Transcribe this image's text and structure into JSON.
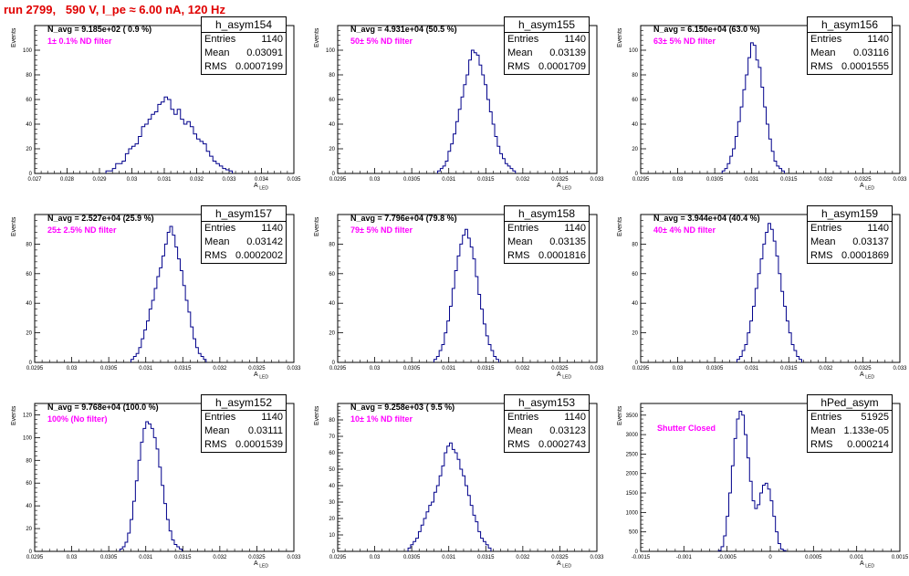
{
  "header": {
    "title": "run 2799,   590 V, I_pe ≈ 6.00 nA, 120 Hz"
  },
  "colors": {
    "title": "#e00000",
    "hist_line": "#00008b",
    "annotation": "#ff00ff",
    "axis": "#000000"
  },
  "chart_data": [
    {
      "type": "histogram",
      "name": "h_asym154",
      "navg": "N_avg = 9.185e+02 ( 0.9 %)",
      "filter": "1± 0.1% ND filter",
      "stats": {
        "entries": "1140",
        "mean": "0.03091",
        "rms": "0.0007199"
      },
      "ylabel": "Events",
      "xlabel": "A",
      "xlabel_sub": "LED",
      "xlim": [
        0.027,
        0.035
      ],
      "ylim": [
        0,
        120
      ],
      "x_ticks": [
        "0.027",
        "0.028",
        "0.029",
        "0.03",
        "0.031",
        "0.032",
        "0.033",
        "0.034",
        "0.035"
      ],
      "y_ticks": [
        0,
        20,
        40,
        60,
        80,
        100
      ],
      "bins": {
        "start": 0.0292,
        "width": 0.0001,
        "counts": [
          2,
          2,
          4,
          8,
          8,
          10,
          16,
          20,
          22,
          24,
          30,
          38,
          40,
          44,
          48,
          50,
          56,
          58,
          62,
          60,
          52,
          48,
          52,
          44,
          40,
          42,
          38,
          32,
          28,
          26,
          24,
          18,
          14,
          10,
          8,
          6,
          4,
          3,
          2
        ]
      }
    },
    {
      "type": "histogram",
      "name": "h_asym155",
      "navg": "N_avg = 4.931e+04 (50.5 %)",
      "filter": "50± 5% ND filter",
      "stats": {
        "entries": "1140",
        "mean": "0.03139",
        "rms": "0.0001709"
      },
      "ylabel": "Events",
      "xlabel": "A",
      "xlabel_sub": "LED",
      "xlim": [
        0.0295,
        0.033
      ],
      "ylim": [
        0,
        120
      ],
      "x_ticks": [
        "0.0295",
        "0.03",
        "0.0305",
        "0.031",
        "0.0315",
        "0.032",
        "0.0325",
        "0.033"
      ],
      "y_ticks": [
        0,
        20,
        40,
        60,
        80,
        100
      ],
      "bins": {
        "start": 0.03085,
        "width": 3.5e-05,
        "counts": [
          2,
          4,
          6,
          10,
          18,
          24,
          32,
          42,
          52,
          62,
          72,
          80,
          92,
          100,
          98,
          96,
          88,
          80,
          72,
          60,
          50,
          40,
          30,
          22,
          16,
          12,
          8,
          6,
          4,
          2
        ]
      }
    },
    {
      "type": "histogram",
      "name": "h_asym156",
      "navg": "N_avg = 6.150e+04 (63.0 %)",
      "filter": "63± 5% ND filter",
      "stats": {
        "entries": "1140",
        "mean": "0.03116",
        "rms": "0.0001555"
      },
      "ylabel": "Events",
      "xlabel": "A",
      "xlabel_sub": "LED",
      "xlim": [
        0.0295,
        0.033
      ],
      "ylim": [
        0,
        120
      ],
      "x_ticks": [
        "0.0295",
        "0.03",
        "0.0305",
        "0.031",
        "0.0315",
        "0.032",
        "0.0325",
        "0.033"
      ],
      "y_ticks": [
        0,
        20,
        40,
        60,
        80,
        100
      ],
      "bins": {
        "start": 0.0306,
        "width": 3.5e-05,
        "counts": [
          2,
          4,
          8,
          14,
          20,
          30,
          42,
          54,
          68,
          80,
          94,
          106,
          104,
          92,
          86,
          70,
          54,
          40,
          28,
          18,
          10,
          6,
          4,
          2
        ]
      }
    },
    {
      "type": "histogram",
      "name": "h_asym157",
      "navg": "N_avg = 2.527e+04 (25.9 %)",
      "filter": "25± 2.5% ND filter",
      "stats": {
        "entries": "1140",
        "mean": "0.03142",
        "rms": "0.0002002"
      },
      "ylabel": "Events",
      "xlabel": "A",
      "xlabel_sub": "LED",
      "xlim": [
        0.0295,
        0.033
      ],
      "ylim": [
        0,
        100
      ],
      "x_ticks": [
        "0.0295",
        "0.03",
        "0.0305",
        "0.031",
        "0.0315",
        "0.032",
        "0.0325",
        "0.033"
      ],
      "y_ticks": [
        0,
        20,
        40,
        60,
        80
      ],
      "bins": {
        "start": 0.0308,
        "width": 3.5e-05,
        "counts": [
          2,
          4,
          6,
          10,
          16,
          22,
          28,
          36,
          42,
          50,
          58,
          64,
          72,
          80,
          88,
          92,
          86,
          78,
          70,
          62,
          52,
          42,
          34,
          24,
          16,
          10,
          6,
          4,
          2
        ]
      }
    },
    {
      "type": "histogram",
      "name": "h_asym158",
      "navg": "N_avg = 7.796e+04 (79.8 %)",
      "filter": "79± 5% ND filter",
      "stats": {
        "entries": "1140",
        "mean": "0.03135",
        "rms": "0.0001816"
      },
      "ylabel": "Events",
      "xlabel": "A",
      "xlabel_sub": "LED",
      "xlim": [
        0.0295,
        0.033
      ],
      "ylim": [
        0,
        100
      ],
      "x_ticks": [
        "0.0295",
        "0.03",
        "0.0305",
        "0.031",
        "0.0315",
        "0.032",
        "0.0325",
        "0.033"
      ],
      "y_ticks": [
        0,
        20,
        40,
        60,
        80
      ],
      "bins": {
        "start": 0.0308,
        "width": 3.5e-05,
        "counts": [
          2,
          4,
          8,
          12,
          20,
          28,
          38,
          50,
          62,
          72,
          80,
          86,
          90,
          84,
          78,
          70,
          58,
          46,
          36,
          26,
          18,
          12,
          8,
          4,
          2
        ]
      }
    },
    {
      "type": "histogram",
      "name": "h_asym159",
      "navg": "N_avg = 3.944e+04 (40.4 %)",
      "filter": "40± 4% ND filter",
      "stats": {
        "entries": "1140",
        "mean": "0.03137",
        "rms": "0.0001869"
      },
      "ylabel": "Events",
      "xlabel": "A",
      "xlabel_sub": "LED",
      "xlim": [
        0.0295,
        0.033
      ],
      "ylim": [
        0,
        100
      ],
      "x_ticks": [
        "0.0295",
        "0.03",
        "0.0305",
        "0.031",
        "0.0315",
        "0.032",
        "0.0325",
        "0.033"
      ],
      "y_ticks": [
        0,
        20,
        40,
        60,
        80
      ],
      "bins": {
        "start": 0.0308,
        "width": 3.5e-05,
        "counts": [
          2,
          4,
          8,
          12,
          20,
          28,
          38,
          50,
          60,
          70,
          80,
          88,
          94,
          90,
          82,
          72,
          60,
          48,
          38,
          28,
          20,
          12,
          8,
          4,
          2
        ]
      }
    },
    {
      "type": "histogram",
      "name": "h_asym152",
      "navg": "N_avg = 9.768e+04 (100.0 %)",
      "filter": "100% (No filter)",
      "stats": {
        "entries": "1140",
        "mean": "0.03111",
        "rms": "0.0001539"
      },
      "ylabel": "Events",
      "xlabel": "A",
      "xlabel_sub": "LED",
      "xlim": [
        0.0295,
        0.033
      ],
      "ylim": [
        0,
        130
      ],
      "x_ticks": [
        "0.0295",
        "0.03",
        "0.0305",
        "0.031",
        "0.0315",
        "0.032",
        "0.0325",
        "0.033"
      ],
      "y_ticks": [
        0,
        20,
        40,
        60,
        80,
        100,
        120
      ],
      "bins": {
        "start": 0.03065,
        "width": 3.5e-05,
        "counts": [
          2,
          4,
          8,
          16,
          28,
          44,
          62,
          80,
          96,
          108,
          114,
          112,
          108,
          100,
          90,
          74,
          58,
          42,
          28,
          18,
          10,
          6,
          4,
          2
        ]
      }
    },
    {
      "type": "histogram",
      "name": "h_asym153",
      "navg": "N_avg = 9.258e+03 ( 9.5 %)",
      "filter": "10± 1% ND filter",
      "stats": {
        "entries": "1140",
        "mean": "0.03123",
        "rms": "0.0002743"
      },
      "ylabel": "Events",
      "xlabel": "A",
      "xlabel_sub": "LED",
      "xlim": [
        0.0295,
        0.033
      ],
      "ylim": [
        0,
        90
      ],
      "x_ticks": [
        "0.0295",
        "0.03",
        "0.0305",
        "0.031",
        "0.0315",
        "0.032",
        "0.0325",
        "0.033"
      ],
      "y_ticks": [
        0,
        10,
        20,
        30,
        40,
        50,
        60,
        70,
        80
      ],
      "bins": {
        "start": 0.03045,
        "width": 3.5e-05,
        "counts": [
          2,
          4,
          6,
          8,
          12,
          16,
          20,
          24,
          28,
          30,
          36,
          40,
          46,
          52,
          60,
          64,
          66,
          62,
          60,
          56,
          50,
          46,
          40,
          34,
          28,
          22,
          18,
          12,
          8,
          6,
          4,
          2
        ]
      }
    },
    {
      "type": "histogram",
      "name": "hPed_asym",
      "navg": "",
      "filter": "Shutter Closed",
      "stats": {
        "entries": "51925",
        "mean": "1.133e-05",
        "rms": "0.000214"
      },
      "ylabel": "Events",
      "xlabel": "A",
      "xlabel_sub": "LED",
      "xlim": [
        -0.0015,
        0.0015
      ],
      "ylim": [
        0,
        3800
      ],
      "x_ticks": [
        "-0.0015",
        "-0.001",
        "-0.0005",
        "0",
        "0.0005",
        "0.001",
        "0.0015"
      ],
      "y_ticks": [
        0,
        500,
        1000,
        1500,
        2000,
        2500,
        3000,
        3500
      ],
      "bins": {
        "start": -0.0006,
        "width": 3e-05,
        "counts": [
          20,
          120,
          400,
          900,
          1500,
          2200,
          2900,
          3400,
          3600,
          3500,
          3000,
          2400,
          1800,
          1300,
          1100,
          1200,
          1500,
          1700,
          1750,
          1600,
          1300,
          900,
          500,
          200,
          60,
          20
        ]
      }
    }
  ]
}
